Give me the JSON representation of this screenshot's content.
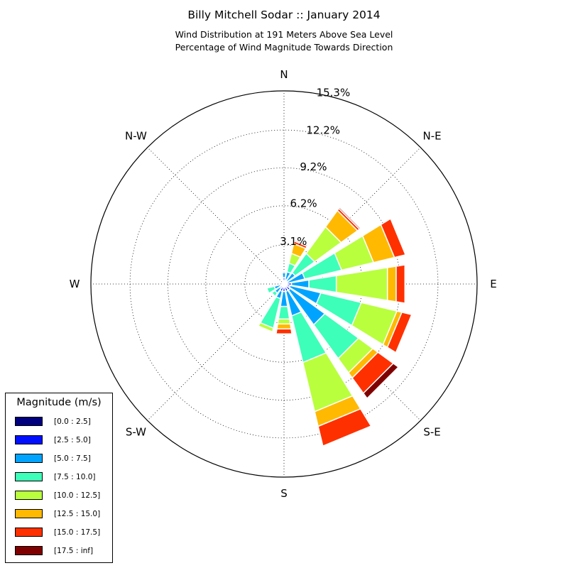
{
  "title": "Billy Mitchell Sodar :: January 2014",
  "subtitle_lines": [
    "Wind Distribution at 191 Meters Above Sea Level",
    "Percentage of Wind Magnitude Towards Direction"
  ],
  "legend": {
    "title": "Magnitude (m/s)",
    "items": [
      {
        "label": "[0.0 : 2.5]",
        "color": "#00007f"
      },
      {
        "label": "[2.5 : 5.0]",
        "color": "#0010ff"
      },
      {
        "label": "[5.0 : 7.5]",
        "color": "#00a4ff"
      },
      {
        "label": "[7.5 : 10.0]",
        "color": "#3dffb9"
      },
      {
        "label": "[10.0 : 12.5]",
        "color": "#b9ff3d"
      },
      {
        "label": "[12.5 : 15.0]",
        "color": "#ffb900"
      },
      {
        "label": "[15.0 : 17.5]",
        "color": "#ff3000"
      },
      {
        "label": "[17.5 : inf]",
        "color": "#7f0000"
      }
    ]
  },
  "chart_data": {
    "type": "windrose",
    "direction_labels": [
      "N",
      "N-E",
      "E",
      "S-E",
      "S",
      "S-W",
      "W",
      "N-W"
    ],
    "radial_ticks": [
      "3.1%",
      "6.2%",
      "9.2%",
      "12.2%",
      "15.3%"
    ],
    "radial_tick_values": [
      3.1,
      6.2,
      9.2,
      12.2,
      15.3
    ],
    "rmax": 15.3,
    "sector_width_deg": 22.5,
    "bins": [
      "[0.0 : 2.5]",
      "[2.5 : 5.0]",
      "[5.0 : 7.5]",
      "[7.5 : 10.0]",
      "[10.0 : 12.5]",
      "[12.5 : 15.0]",
      "[15.0 : 17.5]",
      "[17.5 : inf]"
    ],
    "sectors": [
      {
        "direction_deg": 0,
        "cumulative": [
          0.15,
          0.5,
          0.9,
          0.9,
          0.9,
          0.9,
          0.9,
          0.9
        ]
      },
      {
        "direction_deg": 22.5,
        "cumulative": [
          0.1,
          0.35,
          1.0,
          1.7,
          2.5,
          3.3,
          3.5,
          3.6
        ]
      },
      {
        "direction_deg": 45,
        "cumulative": [
          0.1,
          0.3,
          1.1,
          3.0,
          5.6,
          7.2,
          7.4,
          7.5
        ]
      },
      {
        "direction_deg": 67.5,
        "cumulative": [
          0.1,
          0.3,
          1.7,
          4.7,
          7.3,
          9.0,
          9.9,
          9.9
        ]
      },
      {
        "direction_deg": 90,
        "cumulative": [
          0.1,
          0.6,
          2.0,
          4.2,
          8.3,
          9.0,
          9.7,
          9.7
        ]
      },
      {
        "direction_deg": 112.5,
        "cumulative": [
          0.1,
          0.5,
          3.0,
          6.3,
          9.2,
          9.6,
          10.4,
          10.4
        ]
      },
      {
        "direction_deg": 135,
        "cumulative": [
          0.1,
          0.6,
          4.0,
          7.3,
          8.7,
          9.2,
          10.7,
          11.2
        ]
      },
      {
        "direction_deg": 157.5,
        "cumulative": [
          0.1,
          0.6,
          2.6,
          6.4,
          10.4,
          11.6,
          13.2,
          13.2
        ]
      },
      {
        "direction_deg": 180,
        "cumulative": [
          0.1,
          0.6,
          1.8,
          2.8,
          3.2,
          3.6,
          4.0,
          4.0
        ]
      },
      {
        "direction_deg": 202.5,
        "cumulative": [
          0.1,
          0.6,
          1.2,
          3.6,
          3.9,
          3.9,
          3.9,
          3.9
        ]
      },
      {
        "direction_deg": 225,
        "cumulative": [
          0.05,
          0.4,
          0.9,
          1.2,
          1.2,
          1.2,
          1.2,
          1.2
        ]
      },
      {
        "direction_deg": 247.5,
        "cumulative": [
          0.1,
          0.3,
          0.8,
          1.4,
          1.4,
          1.4,
          1.4,
          1.4
        ]
      },
      {
        "direction_deg": 270,
        "cumulative": [
          0.05,
          0.15,
          0.2,
          0.2,
          0.2,
          0.2,
          0.2,
          0.2
        ]
      },
      {
        "direction_deg": 292.5,
        "cumulative": [
          0.05,
          0.1,
          0.1,
          0.1,
          0.1,
          0.1,
          0.1,
          0.1
        ]
      },
      {
        "direction_deg": 315,
        "cumulative": [
          0.1,
          0.2,
          0.2,
          0.2,
          0.2,
          0.2,
          0.2,
          0.2
        ]
      },
      {
        "direction_deg": 337.5,
        "cumulative": [
          0.05,
          0.2,
          0.2,
          0.2,
          0.2,
          0.2,
          0.2,
          0.2
        ]
      }
    ]
  }
}
